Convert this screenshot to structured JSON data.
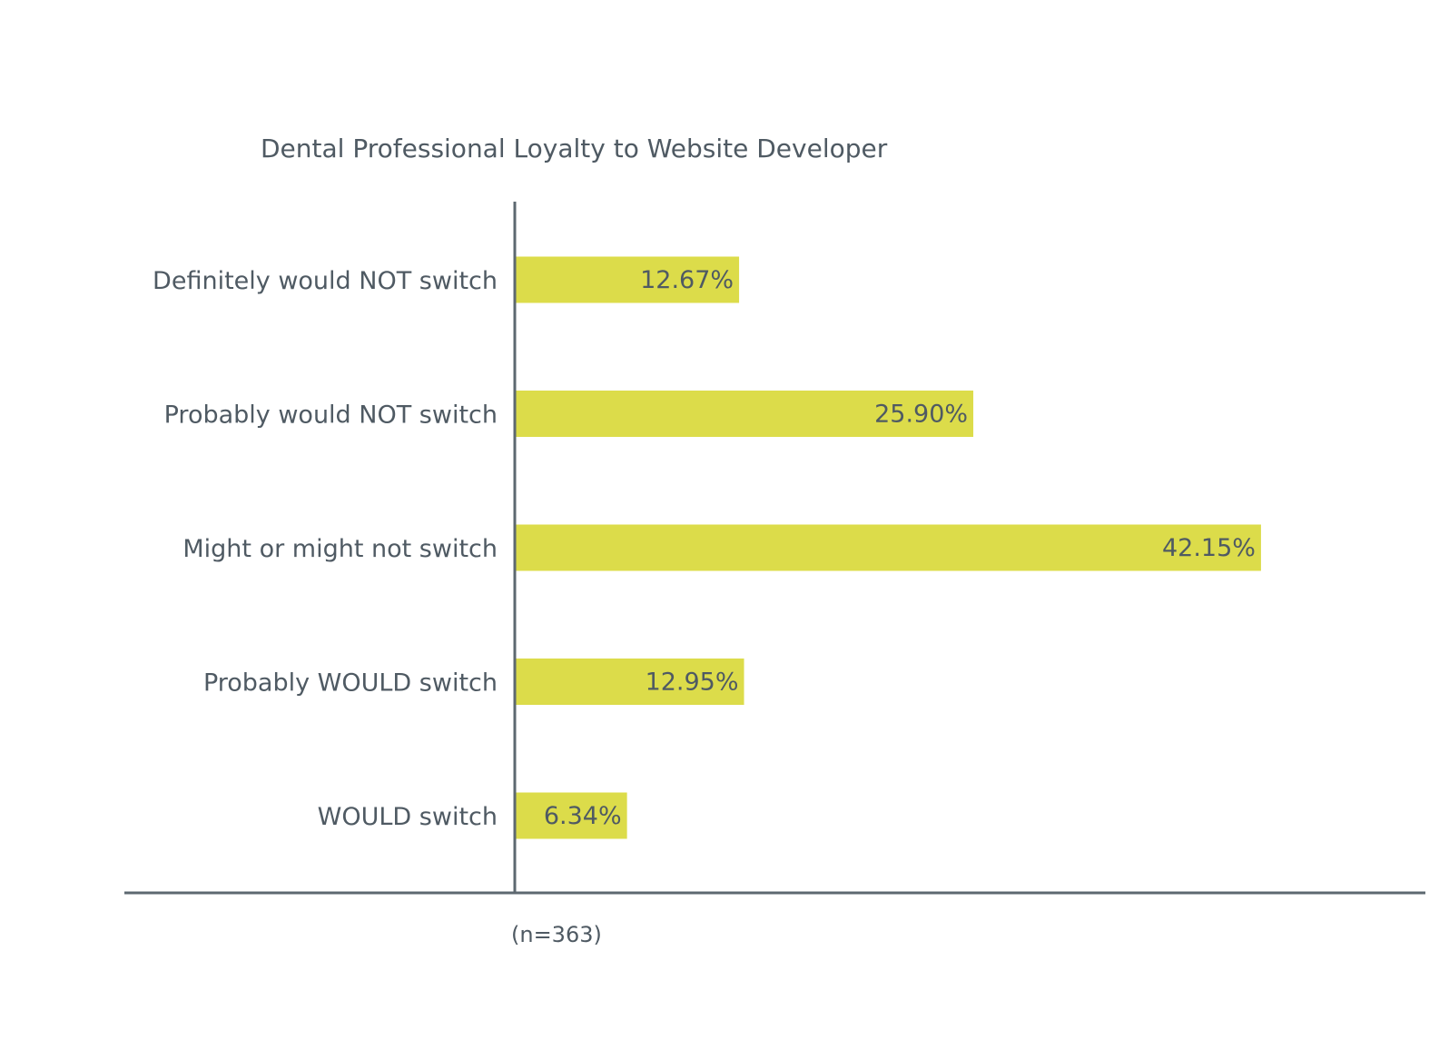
{
  "chart_data": {
    "type": "bar",
    "orientation": "horizontal",
    "title": "Dental Professional Loyalty to Website Developer",
    "categories": [
      "Definitely would NOT switch",
      "Probably would NOT switch",
      "Might or might not switch",
      "Probably WOULD switch",
      "WOULD switch"
    ],
    "values": [
      12.67,
      25.9,
      42.15,
      12.95,
      6.34
    ],
    "value_labels": [
      "12.67%",
      "25.90%",
      "42.15%",
      "12.95%",
      "6.34%"
    ],
    "unit": "%",
    "xlim": [
      0,
      60
    ],
    "grid": false,
    "legend": "none",
    "note": "(n=363)",
    "colors": {
      "bar": "#dcdc4a",
      "axis": "#5d6870",
      "text": "#4f5a63"
    }
  }
}
